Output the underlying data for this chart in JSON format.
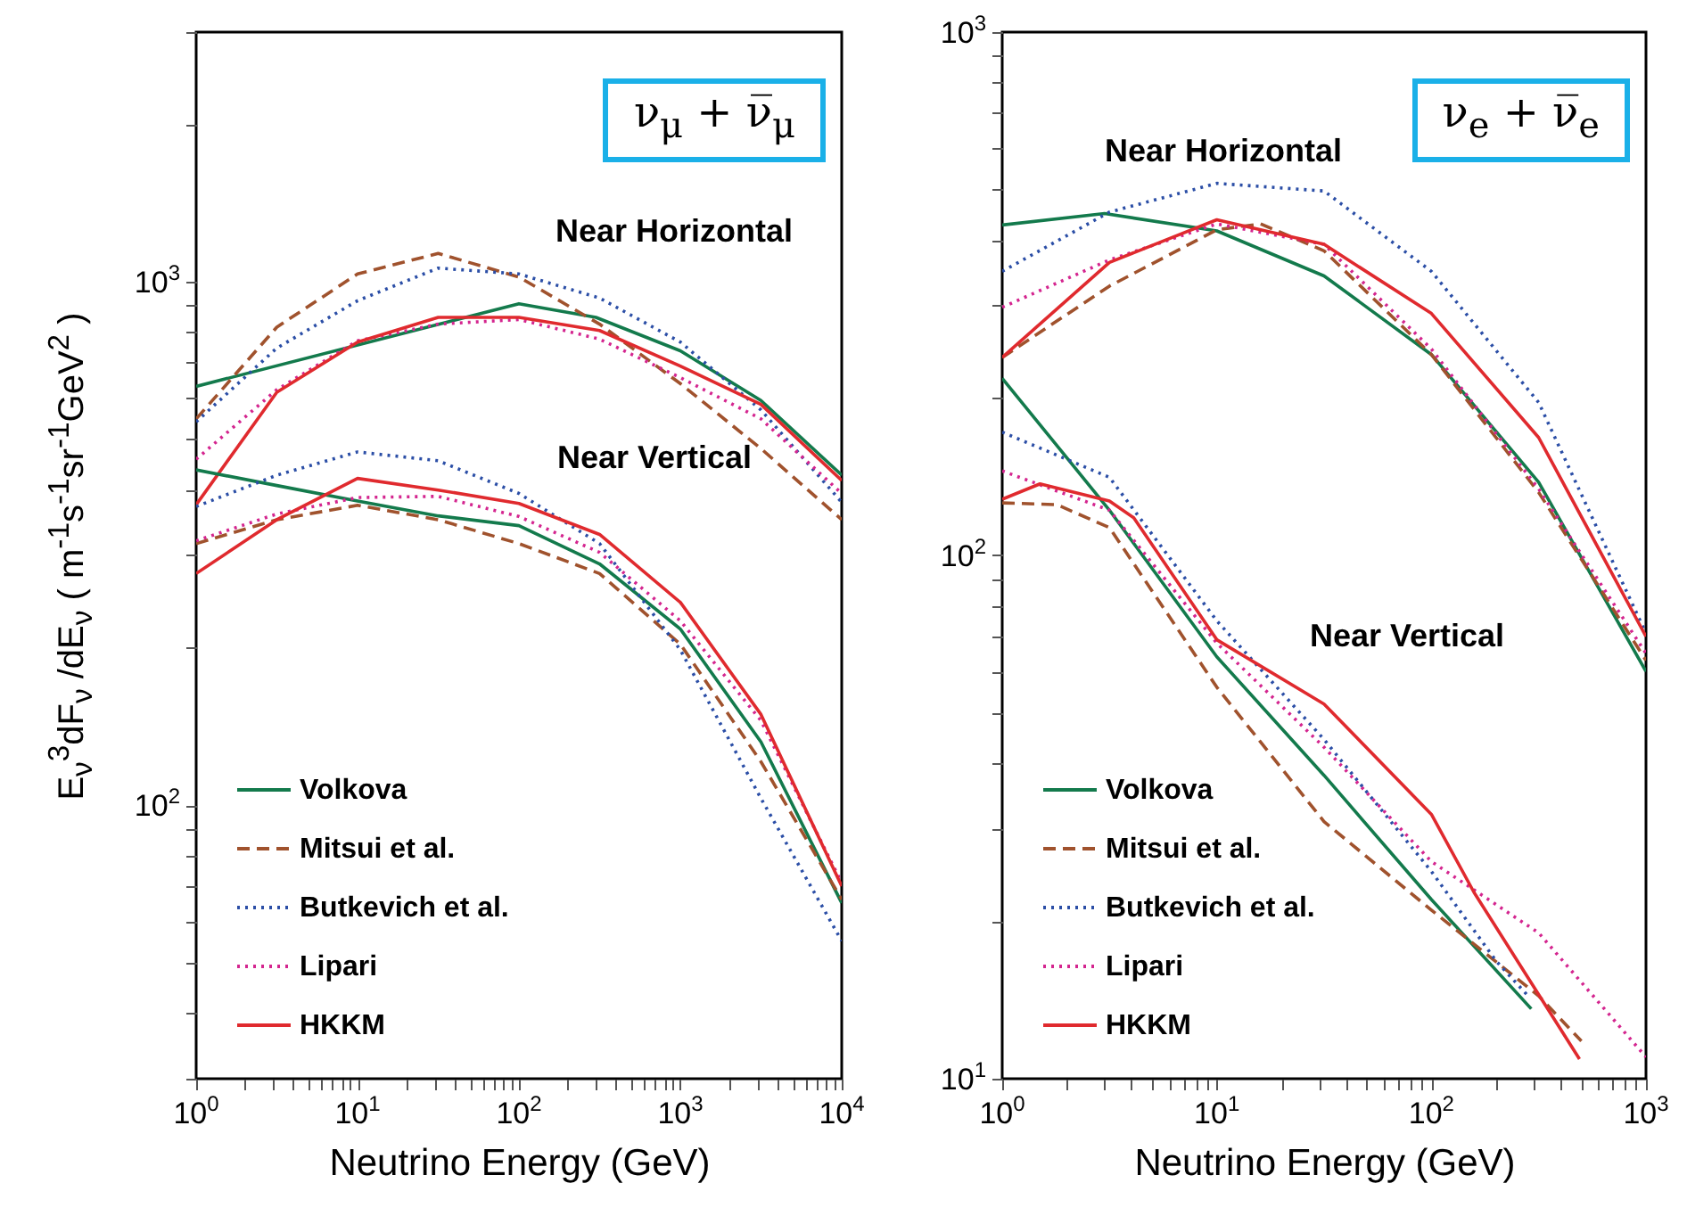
{
  "chart_data": [
    {
      "type": "line",
      "xlabel": "Neutrino Energy (GeV)",
      "ylabel": "E$_{ν}$$^{3}$dF$_{ν}$ /dE$_{ν}$ ( m$^{-1}$s$^{-1}$sr$^{-1}$GeV$^{2}$ )",
      "log": "xy",
      "legend": "bottom left",
      "grid": false,
      "xlim": [
        1,
        10000
      ],
      "ylim": [
        30,
        3000
      ],
      "xticks": [
        {
          "value": 1,
          "label": "10$^{0}$"
        },
        {
          "value": 2,
          "label": null
        },
        {
          "value": 3,
          "label": null
        },
        {
          "value": 4,
          "label": null
        },
        {
          "value": 5,
          "label": null
        },
        {
          "value": 6,
          "label": null
        },
        {
          "value": 7,
          "label": null
        },
        {
          "value": 8,
          "label": null
        },
        {
          "value": 9,
          "label": null
        },
        {
          "value": 10,
          "label": "10$^{1}$"
        },
        {
          "value": 20,
          "label": null
        },
        {
          "value": 30,
          "label": null
        },
        {
          "value": 40,
          "label": null
        },
        {
          "value": 50,
          "label": null
        },
        {
          "value": 60,
          "label": null
        },
        {
          "value": 70,
          "label": null
        },
        {
          "value": 80,
          "label": null
        },
        {
          "value": 90,
          "label": null
        },
        {
          "value": 100,
          "label": "10$^{2}$"
        },
        {
          "value": 200,
          "label": null
        },
        {
          "value": 300,
          "label": null
        },
        {
          "value": 400,
          "label": null
        },
        {
          "value": 500,
          "label": null
        },
        {
          "value": 600,
          "label": null
        },
        {
          "value": 700,
          "label": null
        },
        {
          "value": 800,
          "label": null
        },
        {
          "value": 900,
          "label": null
        },
        {
          "value": 1000,
          "label": "10$^{3}$"
        },
        {
          "value": 2000,
          "label": null
        },
        {
          "value": 3000,
          "label": null
        },
        {
          "value": 4000,
          "label": null
        },
        {
          "value": 5000,
          "label": null
        },
        {
          "value": 6000,
          "label": null
        },
        {
          "value": 7000,
          "label": null
        },
        {
          "value": 8000,
          "label": null
        },
        {
          "value": 9000,
          "label": null
        },
        {
          "value": 10000,
          "label": "10$^{4}$"
        }
      ],
      "yticks": [
        {
          "value": 30,
          "label": null
        },
        {
          "value": 40,
          "label": null
        },
        {
          "value": 50,
          "label": null
        },
        {
          "value": 60,
          "label": null
        },
        {
          "value": 70,
          "label": null
        },
        {
          "value": 80,
          "label": null
        },
        {
          "value": 90,
          "label": null
        },
        {
          "value": 100,
          "label": "10$^{2}$"
        },
        {
          "value": 200,
          "label": null
        },
        {
          "value": 300,
          "label": null
        },
        {
          "value": 400,
          "label": null
        },
        {
          "value": 500,
          "label": null
        },
        {
          "value": 600,
          "label": null
        },
        {
          "value": 700,
          "label": null
        },
        {
          "value": 800,
          "label": null
        },
        {
          "value": 900,
          "label": null
        },
        {
          "value": 1000,
          "label": "10$^{3}$"
        },
        {
          "value": 2000,
          "label": null
        },
        {
          "value": 3000,
          "label": null
        }
      ],
      "annotations": [
        "ν$_{μ}$ + ν̅$_{μ}$",
        "Near Horizontal",
        "Near Vertical"
      ],
      "series": [
        {
          "name": "Volkova",
          "color": "#137a4c",
          "line_style": "solid",
          "x": [
            1,
            100,
            300,
            1000,
            3160,
            10000
          ],
          "values": [
            631,
            908,
            855,
            738,
            593,
            427
          ]
        },
        {
          "name": "Mitsui et al.",
          "color": "#a0522d",
          "line_style": "dashed",
          "x": [
            1,
            3.16,
            10,
            31.6,
            100,
            316,
            1000,
            3160,
            10000
          ],
          "values": [
            547,
            819,
            1035,
            1133,
            1021,
            830,
            639,
            480,
            351
          ]
        },
        {
          "name": "Butkevich et al.",
          "color": "#2b4ea6",
          "line_style": "dotted",
          "x": [
            1,
            3.16,
            10,
            31.6,
            100,
            316,
            1000,
            3160,
            10000
          ],
          "values": [
            540,
            747,
            920,
            1062,
            1035,
            931,
            767,
            569,
            379
          ]
        },
        {
          "name": "Lipari",
          "color": "#d4258f",
          "line_style": "dotted",
          "x": [
            1,
            3.16,
            10,
            31.6,
            100,
            316,
            1000,
            3160,
            10000
          ],
          "values": [
            458,
            622,
            771,
            830,
            847,
            777,
            656,
            547,
            394
          ]
        },
        {
          "name": "HKKM",
          "color": "#e02a2e",
          "line_style": "solid",
          "x": [
            1,
            3.16,
            10,
            31.6,
            100,
            316,
            1000,
            3160,
            10000
          ],
          "values": [
            375,
            615,
            767,
            855,
            855,
            807,
            690,
            583,
            417
          ]
        },
        {
          "color": "#137a4c",
          "line_style": "solid",
          "x": [
            1,
            3.16,
            10,
            31.6,
            100,
            316,
            1000,
            3160,
            10000
          ],
          "values": [
            437,
            408,
            381,
            357,
            342,
            289,
            217,
            132,
            65
          ]
        },
        {
          "color": "#a0522d",
          "line_style": "dashed",
          "x": [
            1,
            3.16,
            10,
            31.6,
            100,
            316,
            1000,
            3160,
            10000
          ],
          "values": [
            316,
            351,
            374,
            351,
            316,
            277,
            203,
            121,
            66
          ]
        },
        {
          "color": "#2b4ea6",
          "line_style": "dotted",
          "x": [
            1,
            3.16,
            10,
            31.6,
            100,
            316,
            1000,
            3160,
            10000
          ],
          "values": [
            372,
            427,
            473,
            455,
            394,
            316,
            198,
            103,
            55
          ]
        },
        {
          "color": "#d4258f",
          "line_style": "dotted",
          "x": [
            1,
            3.16,
            10,
            31.6,
            100,
            316,
            1000,
            3160,
            10000
          ],
          "values": [
            320,
            360,
            387,
            389,
            356,
            304,
            225,
            145,
            71
          ]
        },
        {
          "color": "#e02a2e",
          "line_style": "solid",
          "x": [
            1,
            3.16,
            10,
            31.6,
            100,
            316,
            1000,
            3160,
            10000
          ],
          "values": [
            277,
            351,
            421,
            400,
            377,
            329,
            244,
            149,
            70
          ]
        }
      ]
    },
    {
      "type": "line",
      "xlabel": "Neutrino Energy (GeV)",
      "log": "xy",
      "legend": "bottom left",
      "grid": false,
      "xlim": [
        1,
        1000
      ],
      "ylim": [
        10,
        1000
      ],
      "xticks": [
        {
          "value": 1,
          "label": "10$^{0}$"
        },
        {
          "value": 2,
          "label": null
        },
        {
          "value": 3,
          "label": null
        },
        {
          "value": 4,
          "label": null
        },
        {
          "value": 5,
          "label": null
        },
        {
          "value": 6,
          "label": null
        },
        {
          "value": 7,
          "label": null
        },
        {
          "value": 8,
          "label": null
        },
        {
          "value": 9,
          "label": null
        },
        {
          "value": 10,
          "label": "10$^{1}$"
        },
        {
          "value": 20,
          "label": null
        },
        {
          "value": 30,
          "label": null
        },
        {
          "value": 40,
          "label": null
        },
        {
          "value": 50,
          "label": null
        },
        {
          "value": 60,
          "label": null
        },
        {
          "value": 70,
          "label": null
        },
        {
          "value": 80,
          "label": null
        },
        {
          "value": 90,
          "label": null
        },
        {
          "value": 100,
          "label": "10$^{2}$"
        },
        {
          "value": 200,
          "label": null
        },
        {
          "value": 300,
          "label": null
        },
        {
          "value": 400,
          "label": null
        },
        {
          "value": 500,
          "label": null
        },
        {
          "value": 600,
          "label": null
        },
        {
          "value": 700,
          "label": null
        },
        {
          "value": 800,
          "label": null
        },
        {
          "value": 900,
          "label": null
        },
        {
          "value": 1000,
          "label": "10$^{3}$"
        }
      ],
      "yticks": [
        {
          "value": 10,
          "label": "10$^{1}$"
        },
        {
          "value": 20,
          "label": null
        },
        {
          "value": 30,
          "label": null
        },
        {
          "value": 40,
          "label": null
        },
        {
          "value": 50,
          "label": null
        },
        {
          "value": 60,
          "label": null
        },
        {
          "value": 70,
          "label": null
        },
        {
          "value": 80,
          "label": null
        },
        {
          "value": 90,
          "label": null
        },
        {
          "value": 100,
          "label": "10$^{2}$"
        },
        {
          "value": 200,
          "label": null
        },
        {
          "value": 300,
          "label": null
        },
        {
          "value": 400,
          "label": null
        },
        {
          "value": 500,
          "label": null
        },
        {
          "value": 600,
          "label": null
        },
        {
          "value": 700,
          "label": null
        },
        {
          "value": 800,
          "label": null
        },
        {
          "value": 900,
          "label": null
        },
        {
          "value": 1000,
          "label": "10$^{3}$"
        }
      ],
      "annotations": [
        "ν$_{e}$ + ν̅$_{e}$",
        "Near Horizontal",
        "Near Vertical"
      ],
      "series": [
        {
          "name": "Volkova",
          "color": "#137a4c",
          "line_style": "solid",
          "x": [
            1,
            3,
            10,
            31.6,
            100,
            316,
            1000
          ],
          "values": [
            428,
            450,
            417,
            342,
            242,
            138,
            60
          ]
        },
        {
          "name": "Mitsui et al.",
          "color": "#a0522d",
          "line_style": "dashed",
          "x": [
            1,
            3.16,
            10,
            16,
            31.6,
            100,
            316,
            1000
          ],
          "values": [
            239,
            327,
            419,
            430,
            382,
            242,
            132,
            63
          ]
        },
        {
          "name": "Butkevich et al.",
          "color": "#2b4ea6",
          "line_style": "dotted",
          "x": [
            1,
            3.16,
            10,
            31.6,
            100,
            316,
            1000
          ],
          "values": [
            349,
            453,
            514,
            497,
            349,
            196,
            71
          ]
        },
        {
          "name": "Lipari",
          "color": "#d4258f",
          "line_style": "dotted",
          "x": [
            1,
            3.16,
            10,
            31.6,
            100,
            316,
            1000
          ],
          "values": [
            298,
            367,
            430,
            393,
            248,
            134,
            65
          ]
        },
        {
          "name": "HKKM",
          "color": "#e02a2e",
          "line_style": "solid",
          "x": [
            1,
            3.16,
            10,
            31.6,
            100,
            316,
            1000
          ],
          "values": [
            239,
            363,
            438,
            393,
            290,
            168,
            70
          ]
        },
        {
          "color": "#137a4c",
          "line_style": "solid",
          "x": [
            1,
            3.16,
            10,
            31.6,
            100,
            292
          ],
          "values": [
            218,
            122,
            64,
            38,
            22,
            13.6
          ]
        },
        {
          "color": "#a0522d",
          "line_style": "dashed",
          "x": [
            1,
            1.8,
            3.16,
            10,
            31.6,
            100,
            316,
            500
          ],
          "values": [
            126,
            125,
            113,
            56,
            31,
            21,
            14.4,
            11.8
          ]
        },
        {
          "color": "#2b4ea6",
          "line_style": "dotted",
          "x": [
            1,
            3.16,
            10,
            31.6,
            100,
            200,
            282
          ],
          "values": [
            172,
            141,
            75,
            44.5,
            24.9,
            16.8,
            14.4
          ]
        },
        {
          "color": "#d4258f",
          "line_style": "dotted",
          "x": [
            1,
            3.16,
            10,
            31.6,
            100,
            316,
            1000
          ],
          "values": [
            145,
            122,
            68,
            43,
            26,
            19,
            11
          ]
        },
        {
          "color": "#e02a2e",
          "line_style": "solid",
          "x": [
            1,
            1.5,
            3.16,
            4.1,
            10,
            31.6,
            100,
            158,
            490
          ],
          "values": [
            128,
            137,
            127,
            118,
            69,
            52,
            32,
            22.7,
            10.9
          ]
        }
      ]
    }
  ]
}
